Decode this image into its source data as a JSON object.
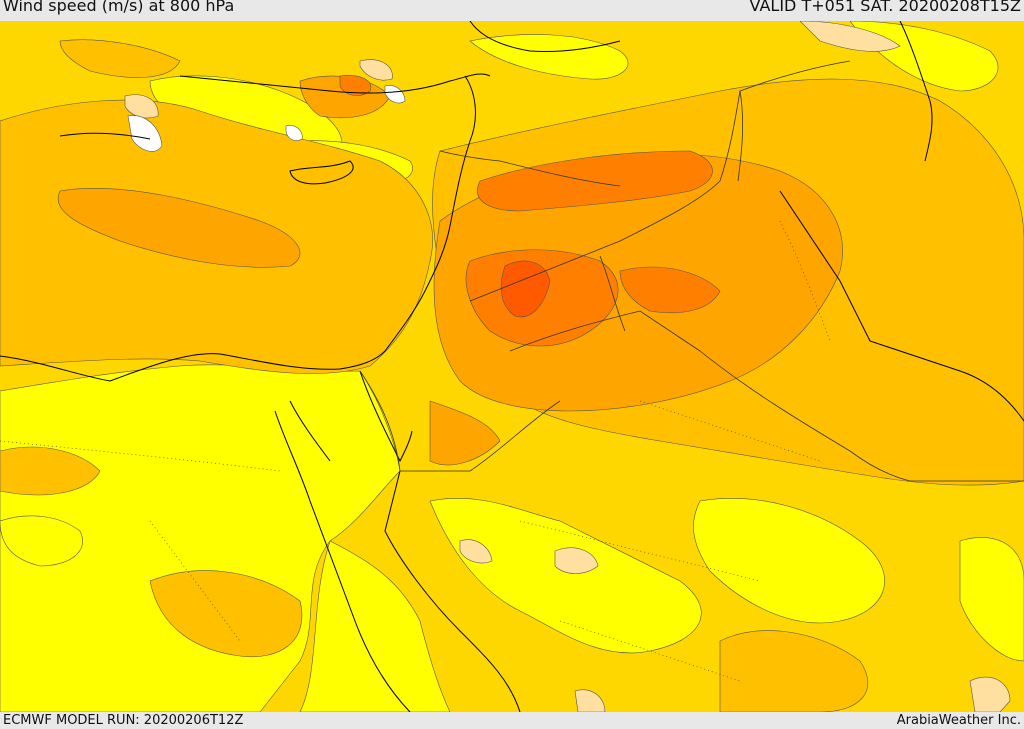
{
  "header": {
    "title": "Wind speed (m/s) at 800 hPa",
    "valid": "VALID T+051 SAT. 20200208T15Z"
  },
  "footer": {
    "model_run": "ECMWF MODEL RUN: 20200206T12Z",
    "credit": "ArabiaWeather Inc."
  },
  "colors": {
    "light_yellow": "#ffff00",
    "gold": "#ffd700",
    "light_orange": "#ffc000",
    "orange": "#ffa500",
    "dark_orange": "#ff8000",
    "red_orange": "#ff5a00",
    "peach": "#ffe0a0",
    "white": "#ffffff"
  }
}
